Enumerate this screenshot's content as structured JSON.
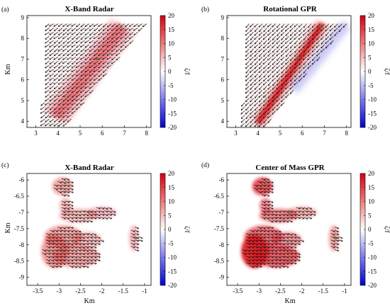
{
  "chart_data": [
    {
      "type": "heatmap",
      "panel": "(a)",
      "title": "X-Band Radar",
      "xlabel": "",
      "ylabel": "Km",
      "x_ticks": [
        3,
        4,
        5,
        6,
        7,
        8
      ],
      "y_ticks": [
        4,
        5,
        6,
        7,
        8,
        9
      ],
      "xlim": [
        2.6,
        8.2
      ],
      "ylim": [
        3.7,
        9.1
      ],
      "grid": false,
      "colorbar": {
        "label": "ζ/f",
        "ticks": [
          20,
          15,
          10,
          5,
          0,
          -5,
          -10,
          -15,
          -20
        ],
        "range": [
          -20,
          20
        ],
        "colormap": "blue-white-red"
      },
      "vectors": "quiver arrows over swath",
      "swath": [
        [
          3.35,
          3.75
        ],
        [
          4.35,
          3.75
        ],
        [
          8.05,
          8.75
        ],
        [
          3.55,
          8.75
        ]
      ],
      "vorticity_peak": 5,
      "band": {
        "from": [
          3.9,
          4.2
        ],
        "to": [
          6.9,
          8.6
        ],
        "width": 0.55,
        "value": 5
      }
    },
    {
      "type": "heatmap",
      "panel": "(b)",
      "title": "Rotational GPR",
      "xlabel": "",
      "ylabel": "",
      "x_ticks": [
        3,
        4,
        5,
        6,
        7,
        8
      ],
      "y_ticks": [
        4,
        5,
        6,
        7,
        8,
        9
      ],
      "xlim": [
        2.6,
        8.2
      ],
      "ylim": [
        3.7,
        9.1
      ],
      "grid": false,
      "colorbar": {
        "label": "ζ/f",
        "ticks": [
          20,
          15,
          10,
          5,
          0,
          -5,
          -10,
          -15,
          -20
        ],
        "range": [
          -20,
          20
        ],
        "colormap": "blue-white-red"
      },
      "vectors": "quiver arrows over swath",
      "swath": [
        [
          3.35,
          3.75
        ],
        [
          4.35,
          3.75
        ],
        [
          8.05,
          8.75
        ],
        [
          3.55,
          8.75
        ]
      ],
      "vorticity_peak": 18,
      "band": {
        "from": [
          4.0,
          3.9
        ],
        "to": [
          6.9,
          8.7
        ],
        "width": 0.25,
        "value": 18
      },
      "negative_band": {
        "from": [
          5.6,
          5.5
        ],
        "to": [
          8.0,
          8.7
        ],
        "width": 0.5,
        "value": -4
      }
    },
    {
      "type": "heatmap",
      "panel": "(c)",
      "title": "X-Band Radar",
      "xlabel": "Km",
      "ylabel": "Km",
      "x_ticks": [
        -3.5,
        -3,
        -2.5,
        -2,
        -1.5,
        -1
      ],
      "x_tick_labels": [
        "-3.5",
        "-3",
        "-2.5",
        "-2",
        "-1.5",
        "-1"
      ],
      "y_ticks": [
        -6,
        -6.5,
        -7,
        -7.5,
        -8,
        -8.5,
        -9
      ],
      "y_tick_labels": [
        "-6",
        "-6.5",
        "-7",
        "-7.5",
        "-8",
        "-8.5",
        "-9"
      ],
      "xlim": [
        -3.75,
        -0.85
      ],
      "ylim": [
        -9.25,
        -5.8
      ],
      "grid": false,
      "colorbar": {
        "label": "ζ/f",
        "ticks": [
          20,
          15,
          10,
          5,
          0,
          -5,
          -10,
          -15,
          -20
        ],
        "range": [
          -20,
          20
        ],
        "colormap": "blue-white-red"
      },
      "vectors": "quiver arrows over masked blob",
      "vorticity_peak": 6
    },
    {
      "type": "heatmap",
      "panel": "(d)",
      "title": "Center of Mass GPR",
      "xlabel": "Km",
      "ylabel": "",
      "x_ticks": [
        -3.5,
        -3,
        -2.5,
        -2,
        -1.5,
        -1
      ],
      "x_tick_labels": [
        "-3.5",
        "-3",
        "-2.5",
        "-2",
        "-1.5",
        "-1"
      ],
      "y_ticks": [
        -6,
        -6.5,
        -7,
        -7.5,
        -8,
        -8.5,
        -9
      ],
      "y_tick_labels": [
        "-6",
        "-6.5",
        "-7",
        "-7.5",
        "-8",
        "-8.5",
        "-9"
      ],
      "xlim": [
        -3.75,
        -0.85
      ],
      "ylim": [
        -9.25,
        -5.8
      ],
      "grid": false,
      "colorbar": {
        "label": "ζ/f",
        "ticks": [
          20,
          15,
          10,
          5,
          0,
          -5,
          -10,
          -15,
          -20
        ],
        "range": [
          -20,
          20
        ],
        "colormap": "blue-white-red"
      },
      "vectors": "quiver arrows over masked blob",
      "vorticity_peak": 16
    }
  ],
  "colors": {
    "positive": "#e8191e",
    "negative": "#2a2ae8",
    "neutral": "#ffffff",
    "arrows": "#111111",
    "markers": "#2e8b2e"
  }
}
